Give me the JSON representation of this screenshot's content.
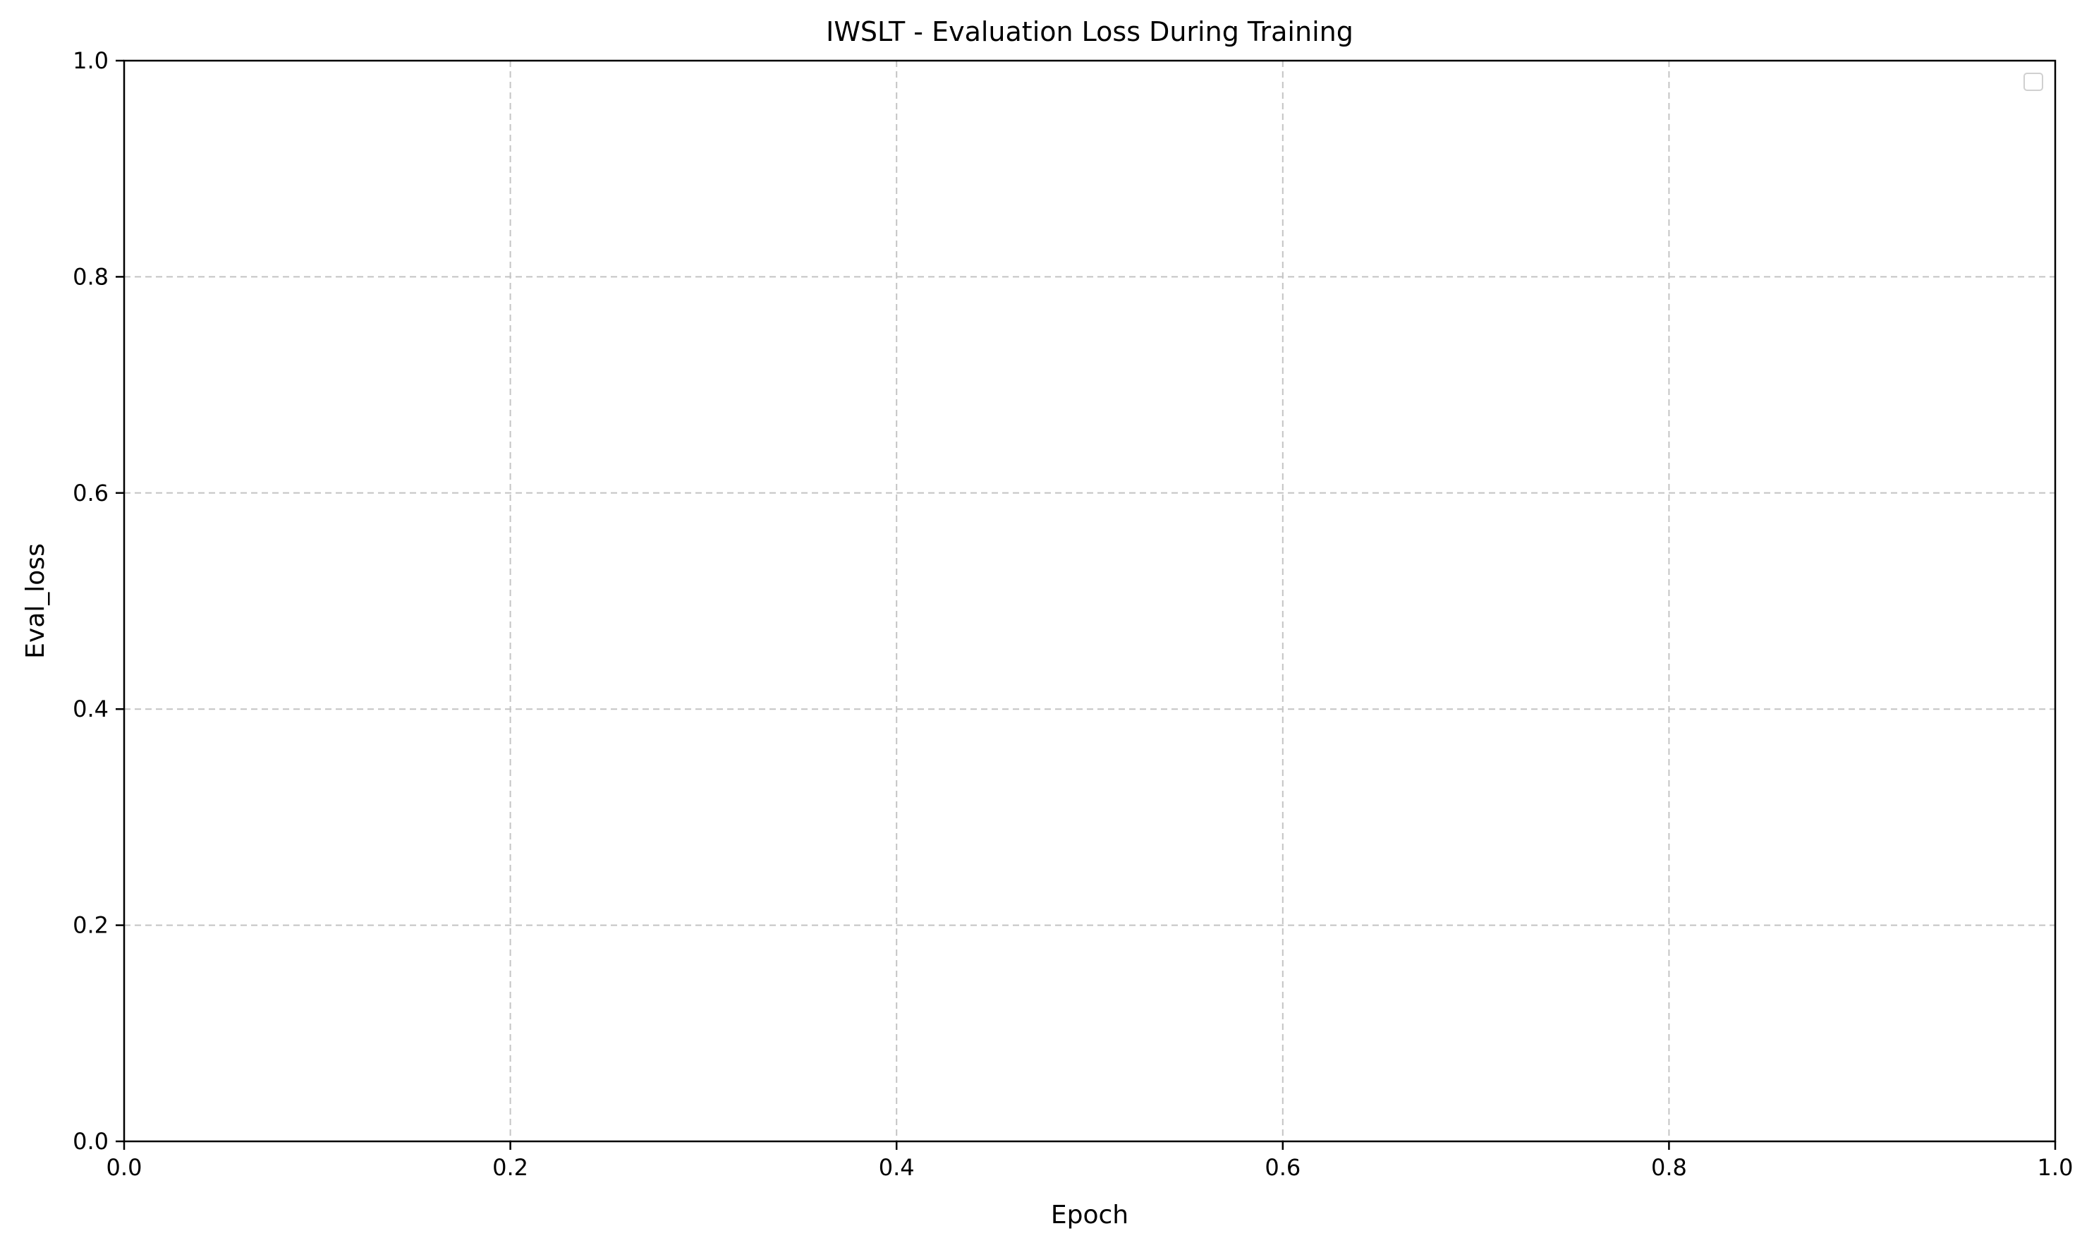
{
  "chart_data": {
    "type": "line",
    "title": "IWSLT - Evaluation Loss During Training",
    "xlabel": "Epoch",
    "ylabel": "Eval_loss",
    "xlim": [
      0.0,
      1.0
    ],
    "ylim": [
      0.0,
      1.0
    ],
    "xticks": [
      {
        "value": 0.0,
        "label": "0.0"
      },
      {
        "value": 0.2,
        "label": "0.2"
      },
      {
        "value": 0.4,
        "label": "0.4"
      },
      {
        "value": 0.6,
        "label": "0.6"
      },
      {
        "value": 0.8,
        "label": "0.8"
      },
      {
        "value": 1.0,
        "label": "1.0"
      }
    ],
    "yticks": [
      {
        "value": 0.0,
        "label": "0.0"
      },
      {
        "value": 0.2,
        "label": "0.2"
      },
      {
        "value": 0.4,
        "label": "0.4"
      },
      {
        "value": 0.6,
        "label": "0.6"
      },
      {
        "value": 0.8,
        "label": "0.8"
      },
      {
        "value": 1.0,
        "label": "1.0"
      }
    ],
    "grid": true,
    "grid_style": "dashed",
    "legend": {
      "placement": "top-right",
      "entries": []
    },
    "series": []
  }
}
